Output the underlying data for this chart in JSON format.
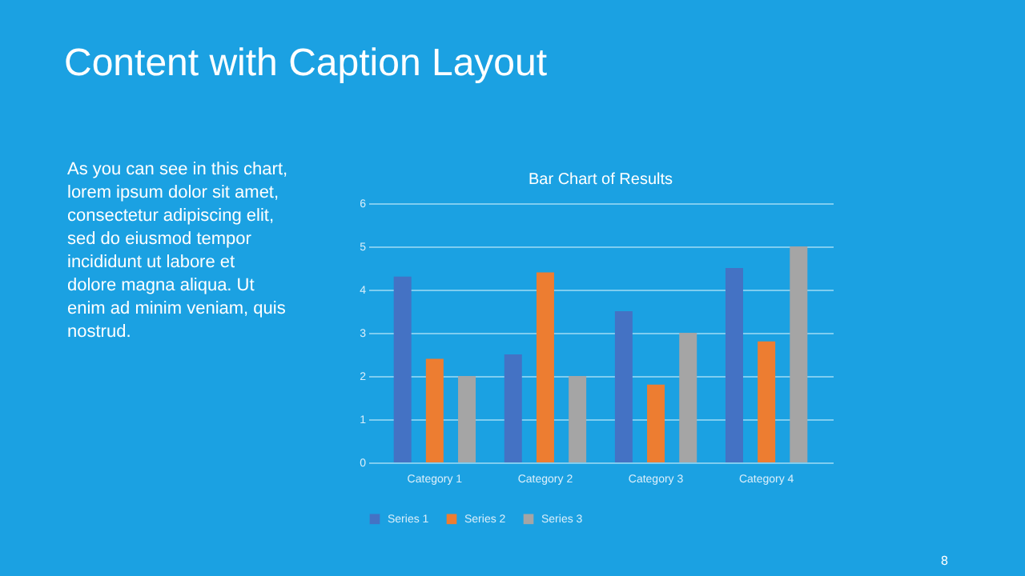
{
  "chart_data": {
    "type": "bar",
    "title": "Content with Caption Layout",
    "subtitle": "Bar Chart of Results",
    "categories": [
      "Category 1",
      "Category 2",
      "Category 3",
      "Category 4"
    ],
    "series": [
      {
        "name": "Series 1",
        "color": "#4472c4",
        "values": [
          4.3,
          2.5,
          3.5,
          4.5
        ]
      },
      {
        "name": "Series 2",
        "color": "#ed7d31",
        "values": [
          2.4,
          4.4,
          1.8,
          2.8
        ]
      },
      {
        "name": "Series 3",
        "color": "#a5a5a5",
        "values": [
          2,
          2,
          3,
          5
        ]
      }
    ],
    "ylim": [
      0,
      6
    ],
    "yticks": [
      0,
      1,
      2,
      3,
      4,
      5,
      6
    ],
    "grid": "y",
    "legend": "bottom",
    "annotations": [
      "As you can see in this chart,",
      "lorem ipsum dolor sit amet,",
      "consectetur adipiscing elit,",
      "sed do eiusmod tempor",
      "incididunt ut labore et",
      "dolore magna aliqua. Ut",
      "enim ad minim veniam, quis",
      "nostrud.",
      "8"
    ]
  }
}
